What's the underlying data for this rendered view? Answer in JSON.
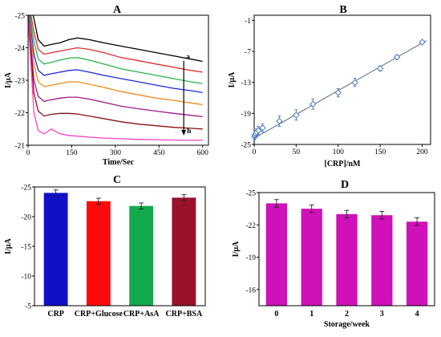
{
  "chart_data": [
    {
      "panel": "A",
      "type": "line",
      "xlabel": "Time/Sec",
      "ylabel": "I/µA",
      "xlim": [
        0,
        620
      ],
      "ylim": [
        -21,
        -25
      ],
      "y_inverted": true,
      "xticks": [
        0,
        150,
        300,
        450,
        600
      ],
      "yticks": [
        -25,
        -24,
        -23,
        -22,
        -21
      ],
      "annotations": {
        "top": "a",
        "bottom": "h"
      },
      "series": [
        {
          "color": "#000000",
          "x": [
            0,
            20,
            35,
            55,
            80,
            110,
            140,
            170,
            210,
            260,
            320,
            380,
            440,
            500,
            560,
            600
          ],
          "values": [
            -25.6,
            -24.9,
            -24.25,
            -24.05,
            -24.1,
            -24.15,
            -24.25,
            -24.3,
            -24.25,
            -24.15,
            -24.05,
            -23.95,
            -23.85,
            -23.75,
            -23.65,
            -23.58
          ]
        },
        {
          "color": "#e03030",
          "x": [
            0,
            20,
            35,
            55,
            80,
            110,
            140,
            170,
            210,
            260,
            320,
            380,
            440,
            500,
            560,
            600
          ],
          "values": [
            -25.5,
            -24.5,
            -23.95,
            -23.8,
            -23.85,
            -23.9,
            -23.95,
            -24.0,
            -23.95,
            -23.85,
            -23.7,
            -23.6,
            -23.5,
            -23.4,
            -23.3,
            -23.25
          ]
        },
        {
          "color": "#2bb24c",
          "x": [
            0,
            20,
            35,
            55,
            80,
            110,
            140,
            170,
            210,
            260,
            320,
            380,
            440,
            500,
            560,
            600
          ],
          "values": [
            -25.4,
            -24.2,
            -23.65,
            -23.5,
            -23.55,
            -23.62,
            -23.68,
            -23.7,
            -23.62,
            -23.5,
            -23.35,
            -23.25,
            -23.15,
            -23.05,
            -22.95,
            -22.9
          ]
        },
        {
          "color": "#1a2ad6",
          "x": [
            0,
            20,
            35,
            55,
            80,
            110,
            140,
            170,
            210,
            260,
            320,
            380,
            440,
            500,
            560,
            600
          ],
          "values": [
            -25.3,
            -23.8,
            -23.3,
            -23.15,
            -23.2,
            -23.25,
            -23.3,
            -23.32,
            -23.25,
            -23.15,
            -23.05,
            -22.95,
            -22.85,
            -22.75,
            -22.68,
            -22.62
          ]
        },
        {
          "color": "#f08a1c",
          "x": [
            0,
            20,
            35,
            55,
            80,
            110,
            140,
            170,
            210,
            260,
            320,
            380,
            440,
            500,
            560,
            600
          ],
          "values": [
            -25.2,
            -23.5,
            -22.95,
            -22.8,
            -22.85,
            -22.9,
            -22.95,
            -22.95,
            -22.88,
            -22.78,
            -22.65,
            -22.55,
            -22.45,
            -22.38,
            -22.3,
            -22.25
          ]
        },
        {
          "color": "#a0188a",
          "x": [
            0,
            20,
            35,
            55,
            80,
            110,
            140,
            170,
            210,
            260,
            320,
            380,
            440,
            500,
            560,
            600
          ],
          "values": [
            -25.1,
            -23.0,
            -22.5,
            -22.35,
            -22.4,
            -22.45,
            -22.48,
            -22.48,
            -22.42,
            -22.32,
            -22.2,
            -22.12,
            -22.05,
            -21.98,
            -21.92,
            -21.88
          ]
        },
        {
          "color": "#8b1010",
          "x": [
            0,
            20,
            35,
            55,
            80,
            110,
            140,
            170,
            210,
            260,
            320,
            380,
            440,
            500,
            560,
            600
          ],
          "values": [
            -25.0,
            -22.6,
            -22.05,
            -21.9,
            -21.95,
            -21.98,
            -21.98,
            -21.96,
            -21.9,
            -21.82,
            -21.72,
            -21.65,
            -21.6,
            -21.55,
            -21.52,
            -21.5
          ]
        },
        {
          "color": "#ff3fbf",
          "x": [
            0,
            20,
            35,
            55,
            80,
            110,
            140,
            170,
            210,
            260,
            320,
            380,
            440,
            500,
            560,
            600
          ],
          "values": [
            -24.9,
            -22.0,
            -21.45,
            -21.35,
            -21.5,
            -21.35,
            -21.3,
            -21.28,
            -21.25,
            -21.22,
            -21.2,
            -21.18,
            -21.17,
            -21.16,
            -21.15,
            -21.15
          ]
        }
      ]
    },
    {
      "panel": "B",
      "type": "scatter",
      "xlabel": "[CRP]/nM",
      "ylabel": "I/µA",
      "xlim": [
        0,
        210
      ],
      "ylim": [
        -25,
        0
      ],
      "xticks": [
        0,
        50,
        100,
        150,
        200
      ],
      "yticks": [
        -1,
        -7,
        -13,
        -19,
        -25
      ],
      "fit_line": {
        "x": [
          0,
          205
        ],
        "y": [
          -23.8,
          -4.9
        ]
      },
      "x": [
        0.5,
        1,
        2,
        3,
        5,
        10,
        30,
        50,
        70,
        100,
        120,
        150,
        170,
        200
      ],
      "values": [
        -23.5,
        -23.2,
        -23.0,
        -22.6,
        -22.3,
        -21.8,
        -20.5,
        -19.3,
        -17.2,
        -15.0,
        -13.0,
        -10.3,
        -8.1,
        -5.2
      ],
      "errors": [
        0.6,
        0.6,
        0.6,
        0.6,
        0.8,
        0.8,
        1.0,
        1.0,
        1.0,
        0.8,
        0.8,
        0.5,
        0.4,
        0.3
      ],
      "marker_color": "#4b79c0"
    },
    {
      "panel": "C",
      "type": "bar",
      "ylabel": "I/µA",
      "ylim": [
        -5,
        -25
      ],
      "y_inverted": true,
      "yticks": [
        -25,
        -20,
        -15,
        -10,
        -5
      ],
      "categories": [
        "CRP",
        "CRP+Glucose",
        "CRP+AsA",
        "CRP+BSA"
      ],
      "values": [
        -24.0,
        -22.6,
        -21.8,
        -23.2
      ],
      "errors": [
        0.5,
        0.5,
        0.5,
        0.5
      ],
      "colors": [
        "#1010c8",
        "#ff0a0a",
        "#13aa4e",
        "#98102a"
      ]
    },
    {
      "panel": "D",
      "type": "bar",
      "xlabel": "Storage/week",
      "ylabel": "I/µA",
      "ylim": [
        -14.5,
        -25
      ],
      "y_inverted": true,
      "yticks": [
        -25,
        -22,
        -19,
        -16
      ],
      "categories": [
        "0",
        "1",
        "2",
        "3",
        "4"
      ],
      "values": [
        -24.0,
        -23.5,
        -23.0,
        -22.9,
        -22.3
      ],
      "errors": [
        0.35,
        0.35,
        0.35,
        0.35,
        0.35
      ],
      "colors": [
        "#d010b8",
        "#d010b8",
        "#d010b8",
        "#d010b8",
        "#d010b8"
      ]
    }
  ]
}
